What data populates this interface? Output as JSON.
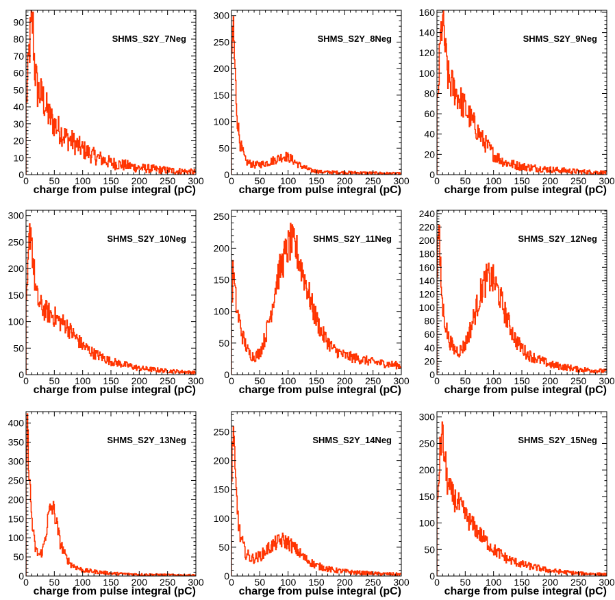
{
  "palette": {
    "hist_color": "#ff3300",
    "frame_color": "#000000",
    "background": "#ffffff"
  },
  "chart_data": [
    {
      "type": "histogram",
      "title": "SHMS_S2Y_7Neg",
      "xlabel": "charge from pulse integral (pC)",
      "xlim": [
        0,
        300
      ],
      "ylim": [
        0,
        97
      ],
      "xticks": [
        "0",
        "50",
        "100",
        "150",
        "200",
        "250",
        "300"
      ],
      "yticks": [
        "0",
        "10",
        "20",
        "30",
        "40",
        "50",
        "60",
        "70",
        "80",
        "90"
      ],
      "profile": [
        [
          0,
          40
        ],
        [
          3,
          55
        ],
        [
          6,
          75
        ],
        [
          9,
          85
        ],
        [
          12,
          90
        ],
        [
          15,
          65
        ],
        [
          20,
          50
        ],
        [
          30,
          45
        ],
        [
          40,
          35
        ],
        [
          50,
          30
        ],
        [
          60,
          26
        ],
        [
          70,
          22
        ],
        [
          80,
          20
        ],
        [
          100,
          15
        ],
        [
          120,
          11
        ],
        [
          150,
          7
        ],
        [
          200,
          4
        ],
        [
          250,
          2.5
        ],
        [
          300,
          1.5
        ]
      ]
    },
    {
      "type": "histogram",
      "title": "SHMS_S2Y_8Neg",
      "xlabel": "charge from pulse integral (pC)",
      "xlim": [
        0,
        300
      ],
      "ylim": [
        0,
        310
      ],
      "xticks": [
        "0",
        "50",
        "100",
        "150",
        "200",
        "250",
        "300"
      ],
      "yticks": [
        "0",
        "50",
        "100",
        "150",
        "200",
        "250",
        "300"
      ],
      "profile": [
        [
          0,
          180
        ],
        [
          3,
          300
        ],
        [
          6,
          200
        ],
        [
          10,
          110
        ],
        [
          15,
          60
        ],
        [
          25,
          25
        ],
        [
          40,
          18
        ],
        [
          55,
          20
        ],
        [
          70,
          25
        ],
        [
          85,
          32
        ],
        [
          95,
          35
        ],
        [
          105,
          30
        ],
        [
          120,
          18
        ],
        [
          140,
          8
        ],
        [
          160,
          5
        ],
        [
          200,
          4
        ],
        [
          250,
          3
        ],
        [
          300,
          2
        ]
      ]
    },
    {
      "type": "histogram",
      "title": "SHMS_S2Y_9Neg",
      "xlabel": "charge from pulse integral (pC)",
      "xlim": [
        0,
        300
      ],
      "ylim": [
        0,
        162
      ],
      "xticks": [
        "0",
        "50",
        "100",
        "150",
        "200",
        "250",
        "300"
      ],
      "yticks": [
        "0",
        "20",
        "40",
        "60",
        "80",
        "100",
        "120",
        "140",
        "160"
      ],
      "profile": [
        [
          0,
          60
        ],
        [
          3,
          90
        ],
        [
          6,
          130
        ],
        [
          9,
          150
        ],
        [
          12,
          145
        ],
        [
          15,
          120
        ],
        [
          20,
          95
        ],
        [
          30,
          85
        ],
        [
          40,
          75
        ],
        [
          50,
          65
        ],
        [
          60,
          55
        ],
        [
          70,
          45
        ],
        [
          80,
          35
        ],
        [
          100,
          20
        ],
        [
          120,
          12
        ],
        [
          150,
          8
        ],
        [
          200,
          5
        ],
        [
          250,
          3
        ],
        [
          300,
          2
        ]
      ]
    },
    {
      "type": "histogram",
      "title": "SHMS_S2Y_10Neg",
      "xlabel": "charge from pulse integral (pC)",
      "xlim": [
        0,
        300
      ],
      "ylim": [
        0,
        310
      ],
      "xticks": [
        "0",
        "50",
        "100",
        "150",
        "200",
        "250",
        "300"
      ],
      "yticks": [
        "0",
        "50",
        "100",
        "150",
        "200",
        "250",
        "300"
      ],
      "profile": [
        [
          0,
          110
        ],
        [
          3,
          180
        ],
        [
          6,
          260
        ],
        [
          9,
          280
        ],
        [
          12,
          220
        ],
        [
          18,
          150
        ],
        [
          25,
          130
        ],
        [
          35,
          120
        ],
        [
          50,
          110
        ],
        [
          60,
          100
        ],
        [
          70,
          95
        ],
        [
          80,
          80
        ],
        [
          100,
          55
        ],
        [
          120,
          40
        ],
        [
          150,
          25
        ],
        [
          200,
          12
        ],
        [
          250,
          7
        ],
        [
          300,
          4
        ]
      ]
    },
    {
      "type": "histogram",
      "title": "SHMS_S2Y_11Neg",
      "xlabel": "charge from pulse integral (pC)",
      "xlim": [
        0,
        300
      ],
      "ylim": [
        0,
        260
      ],
      "xticks": [
        "0",
        "50",
        "100",
        "150",
        "200",
        "250",
        "300"
      ],
      "yticks": [
        "0",
        "50",
        "100",
        "150",
        "200",
        "250"
      ],
      "profile": [
        [
          0,
          100
        ],
        [
          3,
          170
        ],
        [
          6,
          130
        ],
        [
          10,
          100
        ],
        [
          20,
          60
        ],
        [
          30,
          35
        ],
        [
          40,
          28
        ],
        [
          50,
          35
        ],
        [
          60,
          60
        ],
        [
          70,
          100
        ],
        [
          80,
          150
        ],
        [
          95,
          190
        ],
        [
          105,
          210
        ],
        [
          115,
          195
        ],
        [
          130,
          150
        ],
        [
          145,
          100
        ],
        [
          160,
          65
        ],
        [
          180,
          40
        ],
        [
          200,
          30
        ],
        [
          250,
          20
        ],
        [
          300,
          14
        ]
      ]
    },
    {
      "type": "histogram",
      "title": "SHMS_S2Y_12Neg",
      "xlabel": "charge from pulse integral (pC)",
      "xlim": [
        0,
        300
      ],
      "ylim": [
        0,
        245
      ],
      "xticks": [
        "0",
        "50",
        "100",
        "150",
        "200",
        "250",
        "300"
      ],
      "yticks": [
        "0",
        "20",
        "40",
        "60",
        "80",
        "100",
        "120",
        "140",
        "160",
        "180",
        "200",
        "220",
        "240"
      ],
      "profile": [
        [
          0,
          150
        ],
        [
          3,
          230
        ],
        [
          6,
          160
        ],
        [
          10,
          100
        ],
        [
          20,
          55
        ],
        [
          30,
          38
        ],
        [
          40,
          35
        ],
        [
          50,
          45
        ],
        [
          60,
          70
        ],
        [
          70,
          100
        ],
        [
          80,
          130
        ],
        [
          90,
          145
        ],
        [
          100,
          140
        ],
        [
          110,
          120
        ],
        [
          125,
          80
        ],
        [
          140,
          50
        ],
        [
          160,
          30
        ],
        [
          200,
          15
        ],
        [
          250,
          8
        ],
        [
          300,
          5
        ]
      ]
    },
    {
      "type": "histogram",
      "title": "SHMS_S2Y_13Neg",
      "xlabel": "charge from pulse integral (pC)",
      "xlim": [
        0,
        300
      ],
      "ylim": [
        0,
        430
      ],
      "xticks": [
        "0",
        "50",
        "100",
        "150",
        "200",
        "250",
        "300"
      ],
      "yticks": [
        "0",
        "50",
        "100",
        "150",
        "200",
        "250",
        "300",
        "350",
        "400"
      ],
      "profile": [
        [
          0,
          250
        ],
        [
          2,
          400
        ],
        [
          5,
          300
        ],
        [
          8,
          200
        ],
        [
          12,
          120
        ],
        [
          16,
          75
        ],
        [
          20,
          60
        ],
        [
          25,
          55
        ],
        [
          30,
          70
        ],
        [
          35,
          110
        ],
        [
          40,
          160
        ],
        [
          45,
          180
        ],
        [
          50,
          170
        ],
        [
          55,
          130
        ],
        [
          60,
          90
        ],
        [
          70,
          50
        ],
        [
          80,
          30
        ],
        [
          100,
          15
        ],
        [
          150,
          7
        ],
        [
          200,
          4
        ],
        [
          300,
          2
        ]
      ]
    },
    {
      "type": "histogram",
      "title": "SHMS_S2Y_14Neg",
      "xlabel": "charge from pulse integral (pC)",
      "xlim": [
        0,
        300
      ],
      "ylim": [
        0,
        285
      ],
      "xticks": [
        "0",
        "50",
        "100",
        "150",
        "200",
        "250",
        "300"
      ],
      "yticks": [
        "0",
        "50",
        "100",
        "150",
        "200",
        "250"
      ],
      "profile": [
        [
          0,
          150
        ],
        [
          3,
          270
        ],
        [
          6,
          180
        ],
        [
          10,
          120
        ],
        [
          15,
          70
        ],
        [
          25,
          40
        ],
        [
          35,
          30
        ],
        [
          45,
          32
        ],
        [
          55,
          38
        ],
        [
          65,
          48
        ],
        [
          80,
          58
        ],
        [
          90,
          62
        ],
        [
          100,
          58
        ],
        [
          115,
          45
        ],
        [
          130,
          30
        ],
        [
          150,
          18
        ],
        [
          180,
          10
        ],
        [
          220,
          6
        ],
        [
          260,
          4
        ],
        [
          300,
          3
        ]
      ]
    },
    {
      "type": "histogram",
      "title": "SHMS_S2Y_15Neg",
      "xlabel": "charge from pulse integral (pC)",
      "xlim": [
        0,
        300
      ],
      "ylim": [
        0,
        310
      ],
      "xticks": [
        "0",
        "50",
        "100",
        "150",
        "200",
        "250",
        "300"
      ],
      "yticks": [
        "0",
        "50",
        "100",
        "150",
        "200",
        "250",
        "300"
      ],
      "profile": [
        [
          0,
          120
        ],
        [
          3,
          180
        ],
        [
          6,
          240
        ],
        [
          9,
          270
        ],
        [
          12,
          240
        ],
        [
          18,
          180
        ],
        [
          25,
          155
        ],
        [
          35,
          140
        ],
        [
          50,
          115
        ],
        [
          60,
          100
        ],
        [
          75,
          80
        ],
        [
          100,
          50
        ],
        [
          125,
          32
        ],
        [
          150,
          22
        ],
        [
          200,
          10
        ],
        [
          250,
          5
        ],
        [
          300,
          3
        ]
      ]
    }
  ]
}
